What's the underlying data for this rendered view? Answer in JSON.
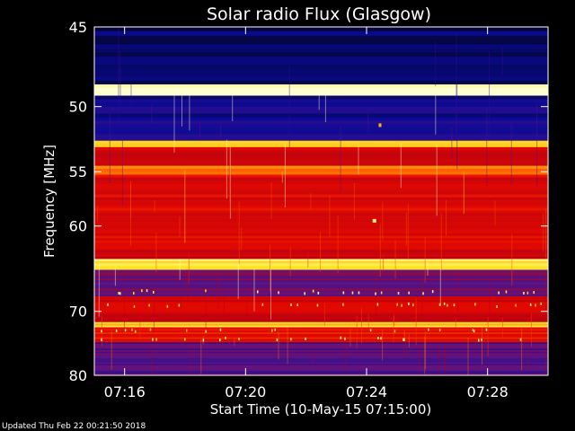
{
  "chart_data": {
    "type": "heatmap",
    "title": "Solar radio Flux (Glasgow)",
    "xlabel": "Start Time (10-May-15 07:15:00)",
    "ylabel": "Frequency [MHz]",
    "footer": "Updated Thu Feb 22 00:21:50 2018",
    "x_tick_labels": [
      "07:16",
      "07:20",
      "07:24",
      "07:28"
    ],
    "x_tick_minutes": [
      1,
      5,
      9,
      13
    ],
    "xlim_minutes": [
      0,
      15
    ],
    "y_tick_labels": [
      "45",
      "50",
      "55",
      "60",
      "70",
      "80"
    ],
    "y_tick_values": [
      45,
      50,
      55,
      60,
      70,
      80
    ],
    "ylim": [
      45,
      80
    ],
    "y_scale": "reciprocal",
    "colormap": "blue-red-yellow-white",
    "colors": {
      "background": "#000000",
      "text": "#ffffff",
      "low": "#0a0a8c",
      "mid": "#cc0000",
      "high": "#ffff80"
    },
    "bands": [
      {
        "from": 45.0,
        "to": 48.6,
        "level": 0.05
      },
      {
        "from": 48.6,
        "to": 49.3,
        "level": 1.0
      },
      {
        "from": 49.3,
        "to": 52.4,
        "level": 0.12
      },
      {
        "from": 52.4,
        "to": 53.0,
        "level": 0.9
      },
      {
        "from": 53.0,
        "to": 54.5,
        "level": 0.55
      },
      {
        "from": 54.5,
        "to": 55.2,
        "level": 0.75
      },
      {
        "from": 55.2,
        "to": 62.5,
        "level": 0.58
      },
      {
        "from": 62.5,
        "to": 63.5,
        "level": 0.5
      },
      {
        "from": 63.5,
        "to": 64.7,
        "level": 0.92
      },
      {
        "from": 64.7,
        "to": 68.0,
        "level": 0.32
      },
      {
        "from": 68.0,
        "to": 71.5,
        "level": 0.55
      },
      {
        "from": 71.5,
        "to": 72.2,
        "level": 0.88
      },
      {
        "from": 72.2,
        "to": 74.5,
        "level": 0.62
      },
      {
        "from": 74.5,
        "to": 80.0,
        "level": 0.28
      }
    ]
  }
}
